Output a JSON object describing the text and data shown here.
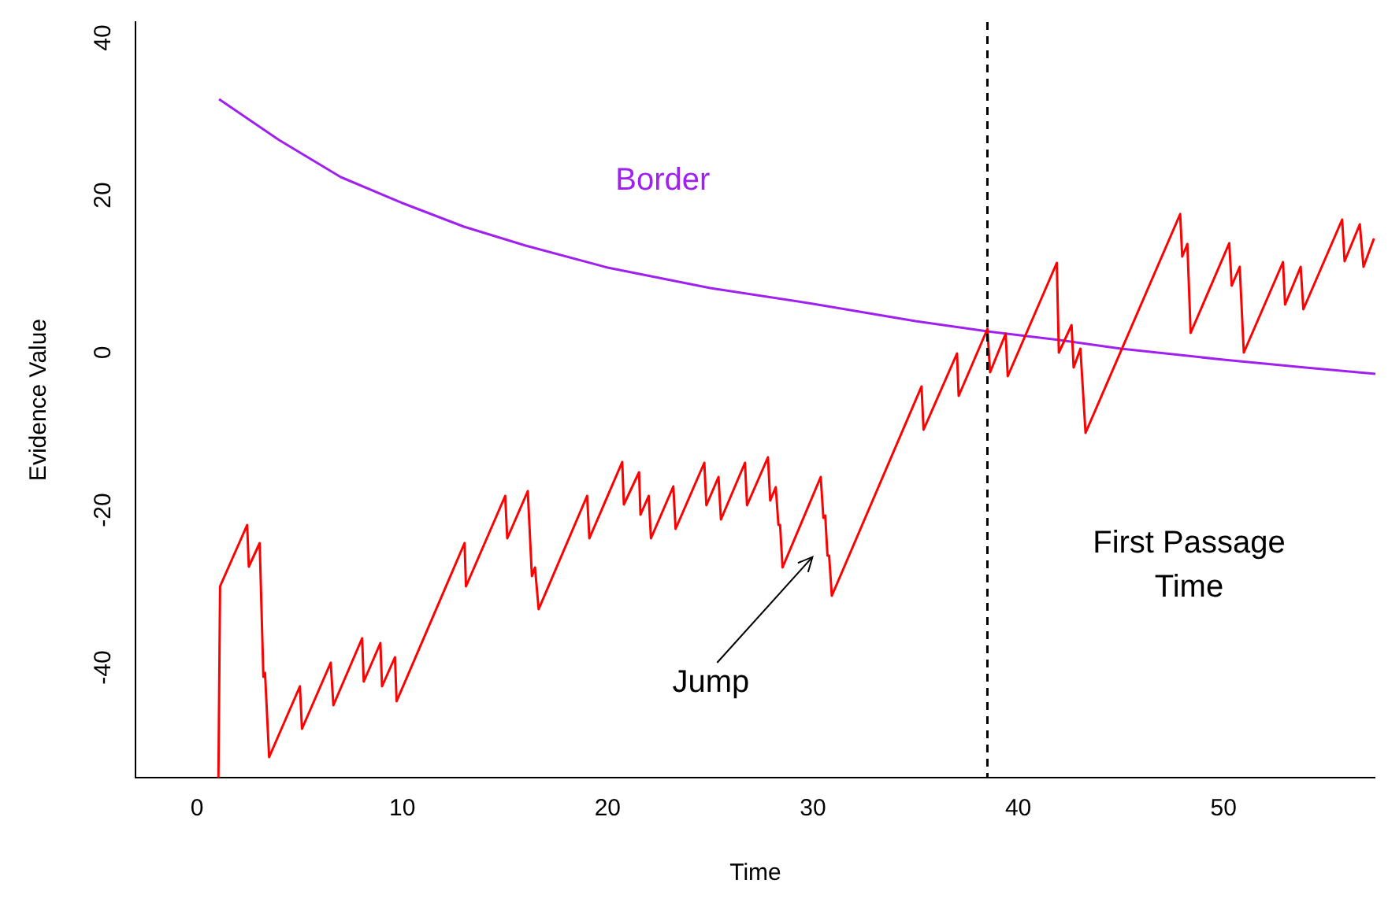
{
  "chart_data": {
    "type": "line",
    "xlabel": "Time",
    "ylabel": "Evidence Value",
    "xlim": [
      -3,
      57.4
    ],
    "ylim": [
      -54,
      42
    ],
    "xticks": [
      0,
      10,
      20,
      30,
      40,
      50
    ],
    "yticks": [
      -40,
      -20,
      0,
      20,
      40
    ],
    "grid": false,
    "legend": false,
    "marker": "none",
    "series": [
      {
        "color": "#ff0000",
        "x": [
          1.04,
          1.12,
          2.44,
          2.52,
          3.05,
          3.23,
          3.31,
          3.51,
          5.01,
          5.11,
          6.51,
          6.64,
          8.04,
          8.12,
          8.93,
          9.01,
          9.64,
          9.72,
          13.03,
          13.1,
          15.01,
          15.11,
          16.11,
          16.31,
          16.46,
          16.64,
          19.0,
          19.11,
          20.71,
          20.79,
          21.53,
          21.6,
          22.0,
          22.11,
          23.2,
          23.31,
          24.71,
          24.81,
          25.4,
          25.52,
          26.69,
          26.79,
          27.81,
          27.92,
          28.19,
          28.32,
          28.4,
          28.52,
          30.38,
          30.51,
          30.6,
          30.71,
          30.79,
          30.92,
          35.29,
          35.39,
          37.02,
          37.1,
          38.5,
          38.63,
          39.39,
          39.49,
          41.88,
          41.98,
          42.6,
          42.7,
          43.03,
          43.28,
          47.89,
          47.99,
          48.24,
          48.4,
          50.28,
          50.4,
          50.79,
          50.99,
          52.9,
          53.0,
          53.76,
          53.89,
          55.78,
          55.9,
          56.64,
          56.82,
          57.33
        ],
        "values": [
          -54,
          -29.7,
          -21.9,
          -27.2,
          -24.2,
          -41.2,
          -40.7,
          -51.4,
          -42.4,
          -47.8,
          -39.4,
          -44.8,
          -36.3,
          -41.8,
          -36.9,
          -42.4,
          -38.7,
          -44.3,
          -24.2,
          -29.7,
          -18.2,
          -23.6,
          -17.6,
          -28.4,
          -27.3,
          -32.6,
          -18.2,
          -23.6,
          -13.9,
          -19.3,
          -15.2,
          -20.6,
          -18.2,
          -23.6,
          -17.0,
          -22.4,
          -14.0,
          -19.4,
          -15.8,
          -21.2,
          -14.0,
          -19.4,
          -13.3,
          -18.8,
          -17.1,
          -21.9,
          -21.9,
          -27.3,
          -15.8,
          -21.0,
          -20.7,
          -25.8,
          -25.8,
          -30.9,
          -4.3,
          -9.8,
          -0.1,
          -5.5,
          3.0,
          -2.5,
          2.4,
          -3.0,
          11.4,
          0.0,
          3.5,
          -1.9,
          0.5,
          -10.2,
          17.6,
          12.2,
          13.8,
          2.5,
          13.9,
          8.5,
          10.9,
          0.0,
          11.5,
          6.1,
          10.9,
          5.5,
          16.9,
          11.6,
          16.3,
          10.9,
          14.5
        ]
      },
      {
        "name": "Border",
        "color": "#a020f0",
        "x": [
          1.07,
          4,
          7,
          10,
          13,
          16,
          20,
          25,
          30,
          35,
          38.5,
          42,
          45,
          50,
          54,
          57.4
        ],
        "values": [
          32.2,
          27,
          22.3,
          19,
          16,
          13.6,
          10.8,
          8.2,
          6.2,
          4.0,
          2.7,
          1.6,
          0.5,
          -0.9,
          -1.9,
          -2.7
        ]
      }
    ],
    "ref_lines": [
      {
        "axis": "x",
        "value": 38.5,
        "label": "First Passage Time",
        "color": "#000000",
        "line_style": "dashed"
      }
    ],
    "annotations": [
      "Jump"
    ]
  }
}
